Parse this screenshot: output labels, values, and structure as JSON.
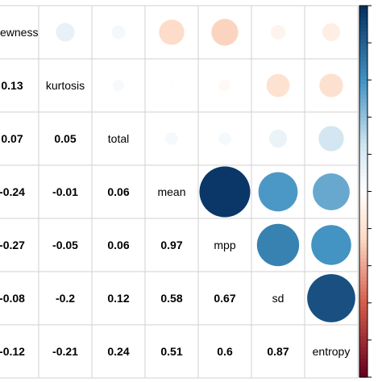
{
  "chart_data": {
    "type": "heatmap",
    "variables": [
      "skewness",
      "kurtosis",
      "total",
      "mean",
      "mpp",
      "sd",
      "entropy"
    ],
    "diagonal_labels": [
      "ewness",
      "kurtosis",
      "total",
      "mean",
      "mpp",
      "sd",
      "entropy"
    ],
    "lower_labels": [
      [],
      [
        "0.13"
      ],
      [
        "0.07",
        "0.05"
      ],
      [
        "-0.24",
        "-0.01",
        "0.06"
      ],
      [
        "-0.27",
        "-0.05",
        "0.06",
        "0.97"
      ],
      [
        "-0.08",
        "-0.2",
        "0.12",
        "0.58",
        "0.67"
      ],
      [
        "-0.12",
        "-0.21",
        "0.24",
        "0.51",
        "0.6",
        "0.87"
      ]
    ],
    "lower_clipped_labels": [
      "0.13",
      ".07",
      "0.24",
      "0.27",
      ".08",
      "0.12"
    ],
    "correlations": [
      [
        1,
        0.13,
        0.07,
        -0.24,
        -0.27,
        -0.08,
        -0.12
      ],
      [
        0.13,
        1,
        0.05,
        -0.01,
        -0.05,
        -0.2,
        -0.21
      ],
      [
        0.07,
        0.05,
        1,
        0.06,
        0.06,
        0.12,
        0.24
      ],
      [
        -0.24,
        -0.01,
        0.06,
        1,
        0.97,
        0.58,
        0.51
      ],
      [
        -0.27,
        -0.05,
        0.06,
        0.97,
        1,
        0.67,
        0.6
      ],
      [
        -0.08,
        -0.2,
        0.12,
        0.58,
        0.67,
        1,
        0.87
      ],
      [
        -0.12,
        -0.21,
        0.24,
        0.51,
        0.6,
        0.87,
        1
      ]
    ],
    "upper_style": "circle",
    "lower_style": "number",
    "color_scale": {
      "low": "#67001F",
      "mid": "#FFFFFF",
      "high": "#053061",
      "range": [
        -1,
        1
      ]
    },
    "legend_placement": "right",
    "grid": true
  }
}
